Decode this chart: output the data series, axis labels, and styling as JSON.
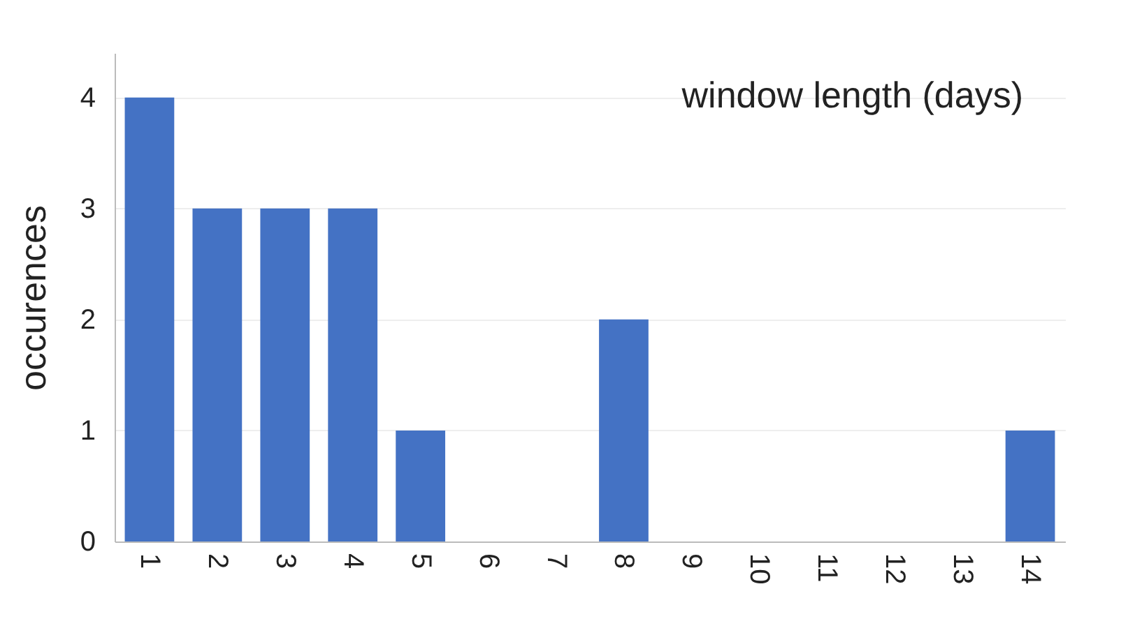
{
  "chart_data": {
    "type": "bar",
    "title": "window length (days)",
    "ylabel": "occurences",
    "categories": [
      "1",
      "2",
      "3",
      "4",
      "5",
      "6",
      "7",
      "8",
      "9",
      "10",
      "11",
      "12",
      "13",
      "14"
    ],
    "values": [
      4,
      3,
      3,
      3,
      1,
      0,
      0,
      2,
      0,
      0,
      0,
      0,
      0,
      1
    ],
    "color": "#4472c4",
    "ylim": [
      0,
      4.4
    ],
    "yticks": [
      0,
      1,
      2,
      3,
      4
    ],
    "grid": "y"
  }
}
